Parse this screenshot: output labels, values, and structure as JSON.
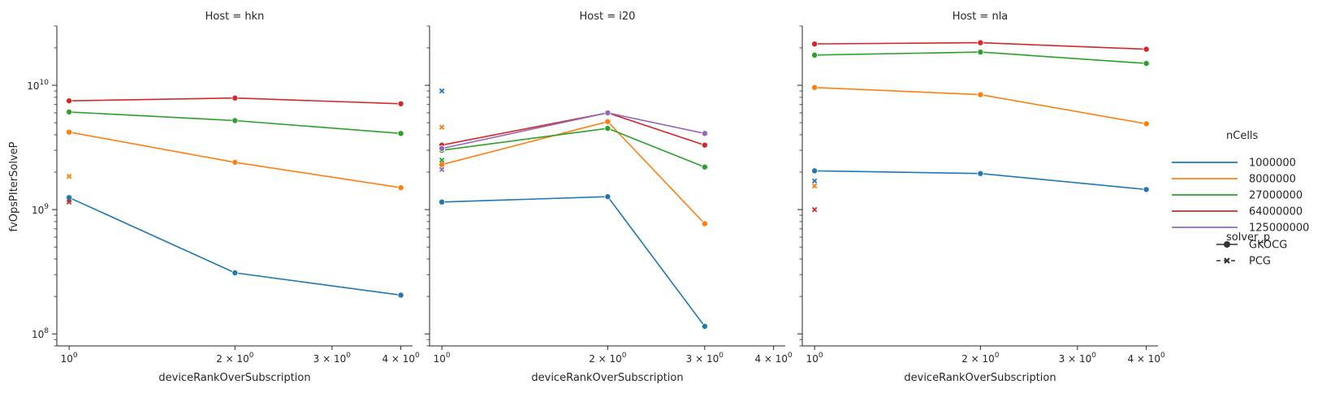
{
  "figure": {
    "ylabel": "fvOpsPIterSolveP",
    "xlabel": "deviceRankOverSubscription"
  },
  "chart_data": [
    {
      "type": "line",
      "title": "Host = hkn",
      "xlabel": "deviceRankOverSubscription",
      "ylabel": "fvOpsPIterSolveP",
      "xscale": "log",
      "yscale": "log",
      "xlim": [
        0.95,
        4.2
      ],
      "ylim": [
        80000000.0,
        30000000000.0
      ],
      "xticks": [
        {
          "value": 1,
          "base": "10",
          "exp": "0"
        },
        {
          "value": 2,
          "base": "2 × 10",
          "exp": "0"
        },
        {
          "value": 3,
          "base": "3 × 10",
          "exp": "0"
        },
        {
          "value": 4,
          "base": "4 × 10",
          "exp": "0"
        }
      ],
      "yticks": [
        {
          "value": 100000000.0,
          "base": "10",
          "exp": "8"
        },
        {
          "value": 1000000000.0,
          "base": "10",
          "exp": "9"
        },
        {
          "value": 10000000000.0,
          "base": "10",
          "exp": "10"
        }
      ],
      "series": [
        {
          "name": "1000000",
          "solver": "GKOCG",
          "x": [
            1,
            2,
            4
          ],
          "y": [
            1250000000.0,
            310000000.0,
            205000000.0
          ]
        },
        {
          "name": "8000000",
          "solver": "GKOCG",
          "x": [
            1,
            2,
            4
          ],
          "y": [
            4200000000.0,
            2400000000.0,
            1500000000.0
          ]
        },
        {
          "name": "27000000",
          "solver": "GKOCG",
          "x": [
            1,
            2,
            4
          ],
          "y": [
            6100000000.0,
            5200000000.0,
            4100000000.0
          ]
        },
        {
          "name": "64000000",
          "solver": "GKOCG",
          "x": [
            1,
            2,
            4
          ],
          "y": [
            7500000000.0,
            7900000000.0,
            7100000000.0
          ]
        },
        {
          "name": "1000000",
          "solver": "PCG",
          "x": [
            1
          ],
          "y": [
            1200000000.0
          ]
        },
        {
          "name": "8000000",
          "solver": "PCG",
          "x": [
            1
          ],
          "y": [
            1850000000.0
          ]
        },
        {
          "name": "64000000",
          "solver": "PCG",
          "x": [
            1
          ],
          "y": [
            1150000000.0
          ]
        }
      ]
    },
    {
      "type": "line",
      "title": "Host = i20",
      "xlabel": "deviceRankOverSubscription",
      "ylabel": "",
      "xscale": "log",
      "yscale": "log",
      "xlim": [
        0.95,
        4.2
      ],
      "ylim": [
        80000000.0,
        30000000000.0
      ],
      "xticks": [
        {
          "value": 1,
          "base": "10",
          "exp": "0"
        },
        {
          "value": 2,
          "base": "2 × 10",
          "exp": "0"
        },
        {
          "value": 3,
          "base": "3 × 10",
          "exp": "0"
        },
        {
          "value": 4,
          "base": "4 × 10",
          "exp": "0"
        }
      ],
      "series": [
        {
          "name": "1000000",
          "solver": "GKOCG",
          "x": [
            1,
            2,
            3
          ],
          "y": [
            1150000000.0,
            1270000000.0,
            115000000.0
          ]
        },
        {
          "name": "8000000",
          "solver": "GKOCG",
          "x": [
            1,
            2,
            3
          ],
          "y": [
            2300000000.0,
            5100000000.0,
            770000000.0
          ]
        },
        {
          "name": "27000000",
          "solver": "GKOCG",
          "x": [
            1,
            2,
            3
          ],
          "y": [
            3000000000.0,
            4500000000.0,
            2200000000.0
          ]
        },
        {
          "name": "64000000",
          "solver": "GKOCG",
          "x": [
            1,
            2,
            3
          ],
          "y": [
            3300000000.0,
            6000000000.0,
            3300000000.0
          ]
        },
        {
          "name": "125000000",
          "solver": "GKOCG",
          "x": [
            1,
            2,
            3
          ],
          "y": [
            3100000000.0,
            6000000000.0,
            4100000000.0
          ]
        },
        {
          "name": "1000000",
          "solver": "PCG",
          "x": [
            1
          ],
          "y": [
            9000000000.0
          ]
        },
        {
          "name": "8000000",
          "solver": "PCG",
          "x": [
            1
          ],
          "y": [
            4600000000.0
          ]
        },
        {
          "name": "27000000",
          "solver": "PCG",
          "x": [
            1
          ],
          "y": [
            2500000000.0
          ]
        },
        {
          "name": "125000000",
          "solver": "PCG",
          "x": [
            1
          ],
          "y": [
            2100000000.0
          ]
        }
      ]
    },
    {
      "type": "line",
      "title": "Host = nla",
      "xlabel": "deviceRankOverSubscription",
      "ylabel": "",
      "xscale": "log",
      "yscale": "log",
      "xlim": [
        0.95,
        4.2
      ],
      "ylim": [
        80000000.0,
        30000000000.0
      ],
      "xticks": [
        {
          "value": 1,
          "base": "10",
          "exp": "0"
        },
        {
          "value": 2,
          "base": "2 × 10",
          "exp": "0"
        },
        {
          "value": 3,
          "base": "3 × 10",
          "exp": "0"
        },
        {
          "value": 4,
          "base": "4 × 10",
          "exp": "0"
        }
      ],
      "series": [
        {
          "name": "1000000",
          "solver": "GKOCG",
          "x": [
            1,
            2,
            4
          ],
          "y": [
            2050000000.0,
            1950000000.0,
            1450000000.0
          ]
        },
        {
          "name": "8000000",
          "solver": "GKOCG",
          "x": [
            1,
            2,
            4
          ],
          "y": [
            9600000000.0,
            8400000000.0,
            4900000000.0
          ]
        },
        {
          "name": "27000000",
          "solver": "GKOCG",
          "x": [
            1,
            2,
            4
          ],
          "y": [
            17500000000.0,
            18500000000.0,
            15000000000.0
          ]
        },
        {
          "name": "64000000",
          "solver": "GKOCG",
          "x": [
            1,
            2,
            4
          ],
          "y": [
            21500000000.0,
            22000000000.0,
            19500000000.0
          ]
        },
        {
          "name": "1000000",
          "solver": "PCG",
          "x": [
            1
          ],
          "y": [
            1700000000.0
          ]
        },
        {
          "name": "8000000",
          "solver": "PCG",
          "x": [
            1
          ],
          "y": [
            1550000000.0
          ]
        },
        {
          "name": "64000000",
          "solver": "PCG",
          "x": [
            1
          ],
          "y": [
            1000000000.0
          ]
        }
      ]
    }
  ],
  "legend": {
    "placement": "right",
    "hue_title": "nCells",
    "hue_items": [
      {
        "label": "1000000",
        "color": "#1f77b4"
      },
      {
        "label": "8000000",
        "color": "#ff7f0e"
      },
      {
        "label": "27000000",
        "color": "#2ca02c"
      },
      {
        "label": "64000000",
        "color": "#d62728"
      },
      {
        "label": "125000000",
        "color": "#9467bd"
      }
    ],
    "style_title": "solver_p",
    "style_items": [
      {
        "label": "GKOCG",
        "marker": "circle",
        "line": "solid"
      },
      {
        "label": "PCG",
        "marker": "x",
        "line": "dashed"
      }
    ]
  }
}
